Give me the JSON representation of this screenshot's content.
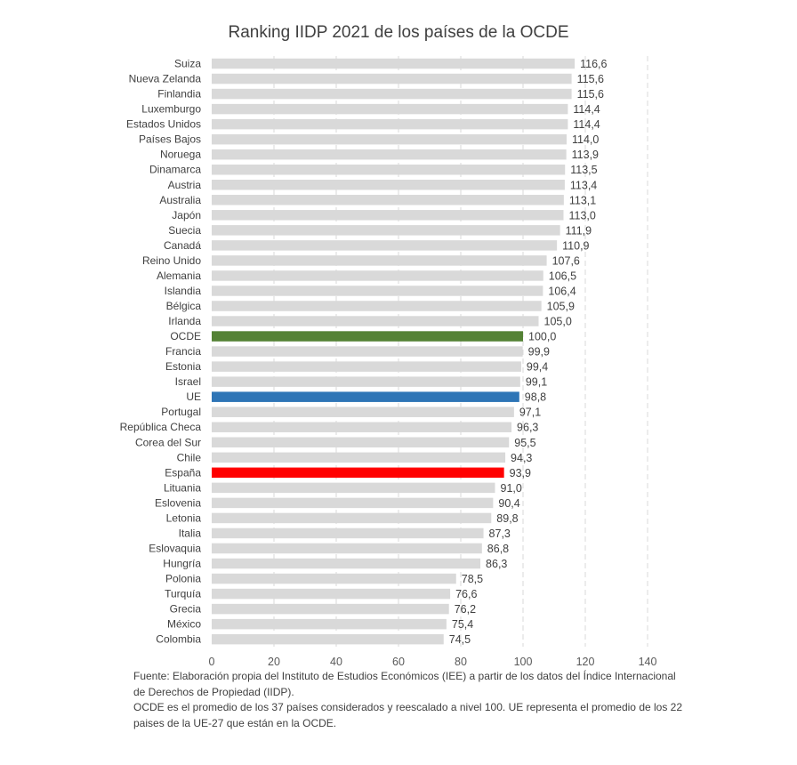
{
  "chart_data": {
    "type": "bar",
    "orientation": "horizontal",
    "title": "Ranking IIDP 2021 de los países de la OCDE",
    "categories": [
      "Suiza",
      "Nueva Zelanda",
      "Finlandia",
      "Luxemburgo",
      "Estados Unidos",
      "Países Bajos",
      "Noruega",
      "Dinamarca",
      "Austria",
      "Australia",
      "Japón",
      "Suecia",
      "Canadá",
      "Reino Unido",
      "Alemania",
      "Islandia",
      "Bélgica",
      "Irlanda",
      "OCDE",
      "Francia",
      "Estonia",
      "Israel",
      "UE",
      "Portugal",
      "República Checa",
      "Corea del Sur",
      "Chile",
      "España",
      "Lituania",
      "Eslovenia",
      "Letonia",
      "Italia",
      "Eslovaquia",
      "Hungría",
      "Polonia",
      "Turquía",
      "Grecia",
      "México",
      "Colombia"
    ],
    "values": [
      116.6,
      115.6,
      115.6,
      114.4,
      114.4,
      114.0,
      113.9,
      113.5,
      113.4,
      113.1,
      113.0,
      111.9,
      110.9,
      107.6,
      106.5,
      106.4,
      105.9,
      105.0,
      100.0,
      99.9,
      99.4,
      99.1,
      98.8,
      97.1,
      96.3,
      95.5,
      94.3,
      93.9,
      91.0,
      90.4,
      89.8,
      87.3,
      86.8,
      86.3,
      78.5,
      76.6,
      76.2,
      75.4,
      74.5
    ],
    "value_labels": [
      "116,6",
      "115,6",
      "115,6",
      "114,4",
      "114,4",
      "114,0",
      "113,9",
      "113,5",
      "113,4",
      "113,1",
      "113,0",
      "111,9",
      "110,9",
      "107,6",
      "106,5",
      "106,4",
      "105,9",
      "105,0",
      "100,0",
      "99,9",
      "99,4",
      "99,1",
      "98,8",
      "97,1",
      "96,3",
      "95,5",
      "94,3",
      "93,9",
      "91,0",
      "90,4",
      "89,8",
      "87,3",
      "86,8",
      "86,3",
      "78,5",
      "76,6",
      "76,2",
      "75,4",
      "74,5"
    ],
    "highlights": {
      "OCDE": "#548235",
      "UE": "#2E75B6",
      "España": "#FF0000"
    },
    "default_color": "#D9D9D9",
    "xlim": [
      0,
      140
    ],
    "xticks": [
      0,
      20,
      40,
      60,
      80,
      100,
      120,
      140
    ],
    "gridlines": "dashed vertical",
    "xlabel": "",
    "ylabel": ""
  },
  "footnote": {
    "line1": "Fuente: Elaboración propia del Instituto de Estudios Económicos (IEE) a partir de los datos del Índice Internacional de Derechos de Propiedad (IIDP).",
    "line2": "OCDE es el promedio de los 37 países considerados y reescalado a nivel 100. UE representa el promedio de los 22 paises de la UE-27 que están en la OCDE."
  }
}
